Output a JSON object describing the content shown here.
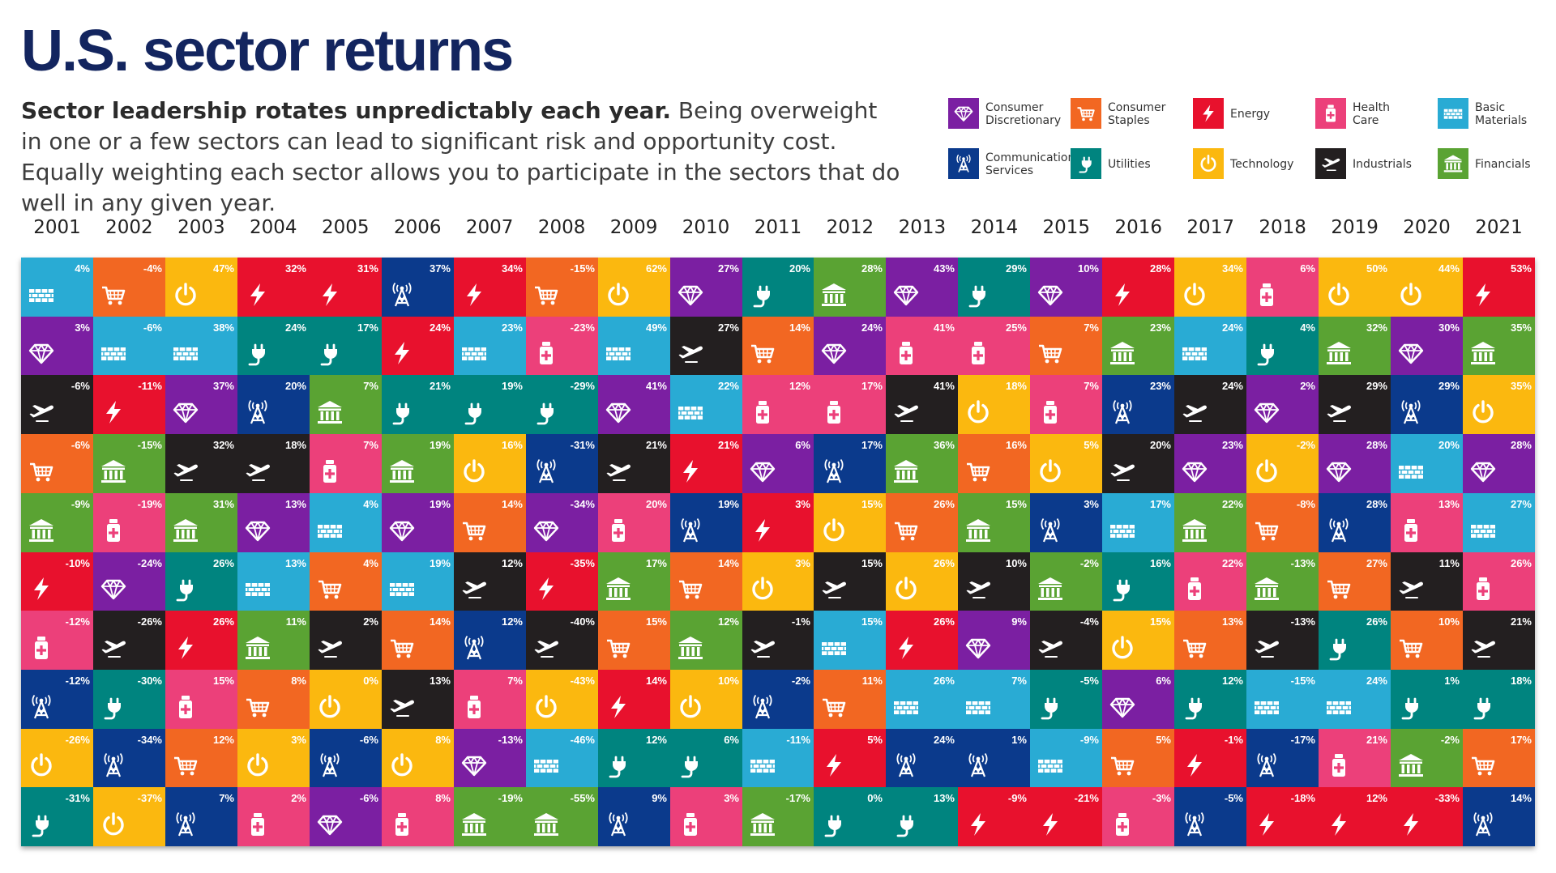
{
  "title": "U.S. sector returns",
  "subtitle_bold": "Sector leadership rotates unpredictably each year.",
  "subtitle_rest": " Being overweight in one or a few sectors can lead to significant risk and opportunity cost. Equally weighting each sector allows you to participate in the sectors that do well in any given year.",
  "legend": [
    {
      "key": "CD",
      "line1": "Consumer",
      "line2": "Discretionary"
    },
    {
      "key": "CS",
      "line1": "Consumer",
      "line2": "Staples"
    },
    {
      "key": "EN",
      "line1": "Energy",
      "line2": ""
    },
    {
      "key": "HC",
      "line1": "Health",
      "line2": "Care"
    },
    {
      "key": "BM",
      "line1": "Basic",
      "line2": "Materials"
    },
    {
      "key": "CM",
      "line1": "Communication",
      "line2": "Services"
    },
    {
      "key": "UT",
      "line1": "Utilities",
      "line2": ""
    },
    {
      "key": "TE",
      "line1": "Technology",
      "line2": ""
    },
    {
      "key": "IN",
      "line1": "Industrials",
      "line2": ""
    },
    {
      "key": "FI",
      "line1": "Financials",
      "line2": ""
    }
  ],
  "sector_colors": {
    "CD": "#7b1fa2",
    "CS": "#f26722",
    "EN": "#e8112d",
    "HC": "#ec407a",
    "BM": "#29abd4",
    "CM": "#0b3a8c",
    "UT": "#00847f",
    "TE": "#fbb80f",
    "IN": "#231f20",
    "FI": "#5aa333"
  },
  "sector_icons": {
    "CD": "diamond-icon",
    "CS": "shopping-cart-icon",
    "EN": "lightning-bolt-icon",
    "HC": "medicine-bottle-icon",
    "BM": "brick-wall-icon",
    "CM": "radio-tower-icon",
    "UT": "power-plug-icon",
    "TE": "power-button-icon",
    "IN": "airplane-icon",
    "FI": "bank-building-icon"
  },
  "chart_data": {
    "type": "table",
    "years": [
      "2001",
      "2002",
      "2003",
      "2004",
      "2005",
      "2006",
      "2007",
      "2008",
      "2009",
      "2010",
      "2011",
      "2012",
      "2013",
      "2014",
      "2015",
      "2016",
      "2017",
      "2018",
      "2019",
      "2020",
      "2021"
    ],
    "columns": [
      [
        [
          "BM",
          "4%"
        ],
        [
          "CD",
          "3%"
        ],
        [
          "IN",
          "-6%"
        ],
        [
          "CS",
          "-6%"
        ],
        [
          "FI",
          "-9%"
        ],
        [
          "EN",
          "-10%"
        ],
        [
          "HC",
          "-12%"
        ],
        [
          "CM",
          "-12%"
        ],
        [
          "TE",
          "-26%"
        ],
        [
          "UT",
          "-31%"
        ]
      ],
      [
        [
          "CS",
          "-4%"
        ],
        [
          "BM",
          "-6%"
        ],
        [
          "EN",
          "-11%"
        ],
        [
          "FI",
          "-15%"
        ],
        [
          "HC",
          "-19%"
        ],
        [
          "CD",
          "-24%"
        ],
        [
          "IN",
          "-26%"
        ],
        [
          "UT",
          "-30%"
        ],
        [
          "CM",
          "-34%"
        ],
        [
          "TE",
          "-37%"
        ]
      ],
      [
        [
          "TE",
          "47%"
        ],
        [
          "BM",
          "38%"
        ],
        [
          "CD",
          "37%"
        ],
        [
          "IN",
          "32%"
        ],
        [
          "FI",
          "31%"
        ],
        [
          "UT",
          "26%"
        ],
        [
          "EN",
          "26%"
        ],
        [
          "HC",
          "15%"
        ],
        [
          "CS",
          "12%"
        ],
        [
          "CM",
          "7%"
        ]
      ],
      [
        [
          "EN",
          "32%"
        ],
        [
          "UT",
          "24%"
        ],
        [
          "CM",
          "20%"
        ],
        [
          "IN",
          "18%"
        ],
        [
          "CD",
          "13%"
        ],
        [
          "BM",
          "13%"
        ],
        [
          "FI",
          "11%"
        ],
        [
          "CS",
          "8%"
        ],
        [
          "TE",
          "3%"
        ],
        [
          "HC",
          "2%"
        ]
      ],
      [
        [
          "EN",
          "31%"
        ],
        [
          "UT",
          "17%"
        ],
        [
          "FI",
          "7%"
        ],
        [
          "HC",
          "7%"
        ],
        [
          "BM",
          "4%"
        ],
        [
          "CS",
          "4%"
        ],
        [
          "IN",
          "2%"
        ],
        [
          "TE",
          "0%"
        ],
        [
          "CM",
          "-6%"
        ],
        [
          "CD",
          "-6%"
        ]
      ],
      [
        [
          "CM",
          "37%"
        ],
        [
          "EN",
          "24%"
        ],
        [
          "UT",
          "21%"
        ],
        [
          "FI",
          "19%"
        ],
        [
          "CD",
          "19%"
        ],
        [
          "BM",
          "19%"
        ],
        [
          "CS",
          "14%"
        ],
        [
          "IN",
          "13%"
        ],
        [
          "TE",
          "8%"
        ],
        [
          "HC",
          "8%"
        ]
      ],
      [
        [
          "EN",
          "34%"
        ],
        [
          "BM",
          "23%"
        ],
        [
          "UT",
          "19%"
        ],
        [
          "TE",
          "16%"
        ],
        [
          "CS",
          "14%"
        ],
        [
          "IN",
          "12%"
        ],
        [
          "CM",
          "12%"
        ],
        [
          "HC",
          "7%"
        ],
        [
          "CD",
          "-13%"
        ],
        [
          "FI",
          "-19%"
        ]
      ],
      [
        [
          "CS",
          "-15%"
        ],
        [
          "HC",
          "-23%"
        ],
        [
          "UT",
          "-29%"
        ],
        [
          "CM",
          "-31%"
        ],
        [
          "CD",
          "-34%"
        ],
        [
          "EN",
          "-35%"
        ],
        [
          "IN",
          "-40%"
        ],
        [
          "TE",
          "-43%"
        ],
        [
          "BM",
          "-46%"
        ],
        [
          "FI",
          "-55%"
        ]
      ],
      [
        [
          "TE",
          "62%"
        ],
        [
          "BM",
          "49%"
        ],
        [
          "CD",
          "41%"
        ],
        [
          "IN",
          "21%"
        ],
        [
          "HC",
          "20%"
        ],
        [
          "FI",
          "17%"
        ],
        [
          "CS",
          "15%"
        ],
        [
          "EN",
          "14%"
        ],
        [
          "UT",
          "12%"
        ],
        [
          "CM",
          "9%"
        ]
      ],
      [
        [
          "CD",
          "27%"
        ],
        [
          "IN",
          "27%"
        ],
        [
          "BM",
          "22%"
        ],
        [
          "EN",
          "21%"
        ],
        [
          "CM",
          "19%"
        ],
        [
          "CS",
          "14%"
        ],
        [
          "FI",
          "12%"
        ],
        [
          "TE",
          "10%"
        ],
        [
          "UT",
          "6%"
        ],
        [
          "HC",
          "3%"
        ]
      ],
      [
        [
          "UT",
          "20%"
        ],
        [
          "CS",
          "14%"
        ],
        [
          "HC",
          "12%"
        ],
        [
          "CD",
          "6%"
        ],
        [
          "EN",
          "3%"
        ],
        [
          "TE",
          "3%"
        ],
        [
          "IN",
          "-1%"
        ],
        [
          "CM",
          "-2%"
        ],
        [
          "BM",
          "-11%"
        ],
        [
          "FI",
          "-17%"
        ]
      ],
      [
        [
          "FI",
          "28%"
        ],
        [
          "CD",
          "24%"
        ],
        [
          "HC",
          "17%"
        ],
        [
          "CM",
          "17%"
        ],
        [
          "TE",
          "15%"
        ],
        [
          "IN",
          "15%"
        ],
        [
          "BM",
          "15%"
        ],
        [
          "CS",
          "11%"
        ],
        [
          "EN",
          "5%"
        ],
        [
          "UT",
          "0%"
        ]
      ],
      [
        [
          "CD",
          "43%"
        ],
        [
          "HC",
          "41%"
        ],
        [
          "IN",
          "41%"
        ],
        [
          "FI",
          "36%"
        ],
        [
          "CS",
          "26%"
        ],
        [
          "TE",
          "26%"
        ],
        [
          "EN",
          "26%"
        ],
        [
          "BM",
          "26%"
        ],
        [
          "CM",
          "24%"
        ],
        [
          "UT",
          "13%"
        ]
      ],
      [
        [
          "UT",
          "29%"
        ],
        [
          "HC",
          "25%"
        ],
        [
          "TE",
          "18%"
        ],
        [
          "CS",
          "16%"
        ],
        [
          "FI",
          "15%"
        ],
        [
          "IN",
          "10%"
        ],
        [
          "CD",
          "9%"
        ],
        [
          "BM",
          "7%"
        ],
        [
          "CM",
          "1%"
        ],
        [
          "EN",
          "-9%"
        ]
      ],
      [
        [
          "CD",
          "10%"
        ],
        [
          "CS",
          "7%"
        ],
        [
          "HC",
          "7%"
        ],
        [
          "TE",
          "5%"
        ],
        [
          "CM",
          "3%"
        ],
        [
          "FI",
          "-2%"
        ],
        [
          "IN",
          "-4%"
        ],
        [
          "UT",
          "-5%"
        ],
        [
          "BM",
          "-9%"
        ],
        [
          "EN",
          "-21%"
        ]
      ],
      [
        [
          "EN",
          "28%"
        ],
        [
          "FI",
          "23%"
        ],
        [
          "CM",
          "23%"
        ],
        [
          "IN",
          "20%"
        ],
        [
          "BM",
          "17%"
        ],
        [
          "UT",
          "16%"
        ],
        [
          "TE",
          "15%"
        ],
        [
          "CD",
          "6%"
        ],
        [
          "CS",
          "5%"
        ],
        [
          "HC",
          "-3%"
        ]
      ],
      [
        [
          "TE",
          "34%"
        ],
        [
          "BM",
          "24%"
        ],
        [
          "IN",
          "24%"
        ],
        [
          "CD",
          "23%"
        ],
        [
          "FI",
          "22%"
        ],
        [
          "HC",
          "22%"
        ],
        [
          "CS",
          "13%"
        ],
        [
          "UT",
          "12%"
        ],
        [
          "EN",
          "-1%"
        ],
        [
          "CM",
          "-5%"
        ]
      ],
      [
        [
          "HC",
          "6%"
        ],
        [
          "UT",
          "4%"
        ],
        [
          "CD",
          "2%"
        ],
        [
          "TE",
          "-2%"
        ],
        [
          "CS",
          "-8%"
        ],
        [
          "FI",
          "-13%"
        ],
        [
          "IN",
          "-13%"
        ],
        [
          "BM",
          "-15%"
        ],
        [
          "CM",
          "-17%"
        ],
        [
          "EN",
          "-18%"
        ]
      ],
      [
        [
          "TE",
          "50%"
        ],
        [
          "FI",
          "32%"
        ],
        [
          "IN",
          "29%"
        ],
        [
          "CD",
          "28%"
        ],
        [
          "CM",
          "28%"
        ],
        [
          "CS",
          "27%"
        ],
        [
          "UT",
          "26%"
        ],
        [
          "BM",
          "24%"
        ],
        [
          "HC",
          "21%"
        ],
        [
          "EN",
          "12%"
        ]
      ],
      [
        [
          "TE",
          "44%"
        ],
        [
          "CD",
          "30%"
        ],
        [
          "CM",
          "29%"
        ],
        [
          "BM",
          "20%"
        ],
        [
          "HC",
          "13%"
        ],
        [
          "IN",
          "11%"
        ],
        [
          "CS",
          "10%"
        ],
        [
          "UT",
          "1%"
        ],
        [
          "FI",
          "-2%"
        ],
        [
          "EN",
          "-33%"
        ]
      ],
      [
        [
          "EN",
          "53%"
        ],
        [
          "FI",
          "35%"
        ],
        [
          "TE",
          "35%"
        ],
        [
          "CD",
          "28%"
        ],
        [
          "BM",
          "27%"
        ],
        [
          "HC",
          "26%"
        ],
        [
          "IN",
          "21%"
        ],
        [
          "UT",
          "18%"
        ],
        [
          "CS",
          "17%"
        ],
        [
          "CM",
          "14%"
        ]
      ]
    ]
  }
}
